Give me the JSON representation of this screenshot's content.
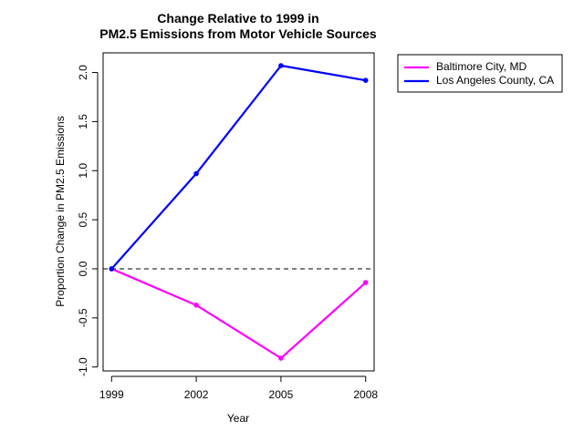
{
  "chart_data": {
    "type": "line",
    "title_lines": [
      "Change Relative to 1999 in",
      "PM2.5 Emissions from Motor Vehicle Sources"
    ],
    "xlabel": "Year",
    "ylabel": "Proportion Change in PM2.5 Emissions",
    "x": [
      1999,
      2002,
      2005,
      2008
    ],
    "x_tick_labels": [
      "1999",
      "2002",
      "2005",
      "2008"
    ],
    "xlim": [
      1998.7,
      2008.3
    ],
    "ylim": [
      -1.04,
      2.2
    ],
    "y_ticks": [
      -1.0,
      -0.5,
      0.0,
      0.5,
      1.0,
      1.5,
      2.0
    ],
    "y_tick_labels": [
      "-1.0",
      "-0.5",
      "0.0",
      "0.5",
      "1.0",
      "1.5",
      "2.0"
    ],
    "reference_line_y": 0,
    "grid": false,
    "legend_position": "top-right outside plot",
    "series": [
      {
        "name": "Baltimore City, MD",
        "color": "#FF00FF",
        "values": [
          0.0,
          -0.37,
          -0.91,
          -0.14
        ]
      },
      {
        "name": "Los Angeles County, CA",
        "color": "#0000FF",
        "values": [
          0.0,
          0.97,
          2.07,
          1.92
        ]
      }
    ]
  }
}
